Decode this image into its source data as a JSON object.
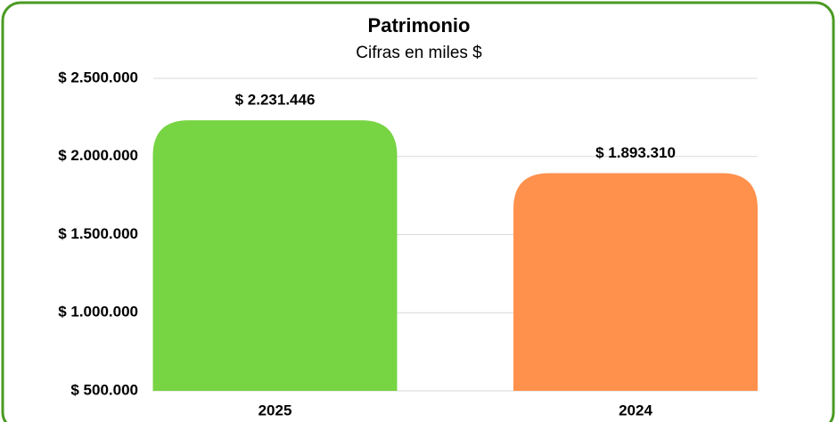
{
  "chart_data": {
    "type": "bar",
    "title": "Patrimonio",
    "subtitle": "Cifras en miles $",
    "categories": [
      "2025",
      "2024"
    ],
    "values": [
      2231446,
      1893310
    ],
    "value_labels": [
      "$ 2.231.446",
      "$ 1.893.310"
    ],
    "colors": [
      "#77d443",
      "#ff914d"
    ],
    "ylim": [
      500000,
      2500000
    ],
    "yticks": [
      {
        "value": 500000,
        "label": "$ 500.000"
      },
      {
        "value": 1000000,
        "label": "$ 1.000.000"
      },
      {
        "value": 1500000,
        "label": "$ 1.500.000"
      },
      {
        "value": 2000000,
        "label": "$ 2.000.000"
      },
      {
        "value": 2500000,
        "label": "$ 2.500.000"
      }
    ],
    "grid": true
  }
}
